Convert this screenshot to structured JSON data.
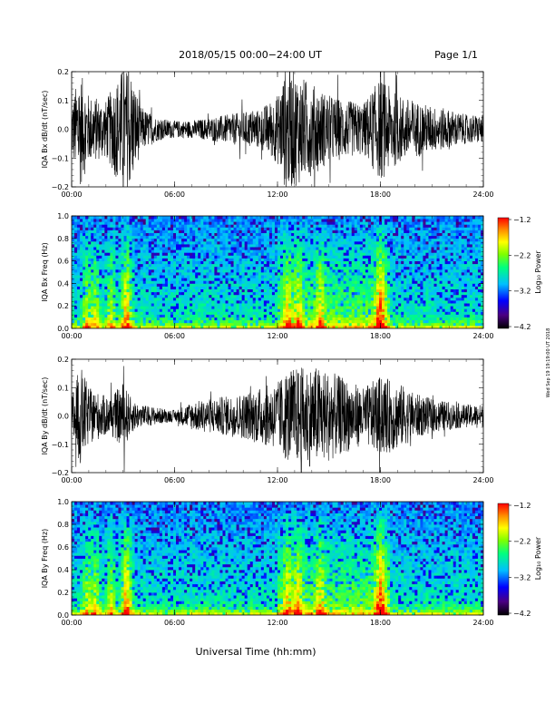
{
  "header": {
    "title": "2018/05/15  00:00−24:00 UT",
    "page": "Page 1/1"
  },
  "footer": {
    "xlabel": "Universal Time (hh:mm)",
    "stamp": "Wed Sep 19 19:19:00 UT 2018"
  },
  "colors": {
    "trace": "#000000",
    "colormap": [
      "#000000",
      "#4b0082",
      "#0000ff",
      "#00bfff",
      "#00ff7f",
      "#7fff00",
      "#ffff00",
      "#ff8c00",
      "#ff0000"
    ]
  },
  "chart_data": [
    {
      "type": "line",
      "name": "bx-waveform",
      "ylabel": "IQA Bx dB/dt (nT/sec)",
      "xlim": [
        0,
        24
      ],
      "ylim": [
        -0.2,
        0.2
      ],
      "xticks": [
        "00:00",
        "06:00",
        "12:00",
        "18:00",
        "24:00"
      ],
      "yticks": [
        "0.2",
        "0.1",
        "0.0",
        "−0.1",
        "−0.2"
      ],
      "amplitude_profile": {
        "x": [
          0,
          0.5,
          1,
          2,
          2.5,
          3,
          3.5,
          4,
          5,
          6,
          7,
          8,
          9,
          10,
          11,
          12,
          12.5,
          13,
          14,
          15,
          16,
          17,
          18,
          19,
          20,
          21,
          22,
          23,
          24
        ],
        "amp": [
          0.1,
          0.2,
          0.12,
          0.1,
          0.16,
          0.22,
          0.2,
          0.08,
          0.04,
          0.03,
          0.03,
          0.04,
          0.05,
          0.06,
          0.07,
          0.12,
          0.22,
          0.2,
          0.16,
          0.12,
          0.1,
          0.09,
          0.18,
          0.12,
          0.1,
          0.08,
          0.07,
          0.05,
          0.05
        ]
      }
    },
    {
      "type": "heatmap",
      "name": "bx-spectrogram",
      "ylabel": "IQA Bx Freq (Hz)",
      "xlim": [
        0,
        24
      ],
      "ylim": [
        0,
        1.0
      ],
      "xticks": [
        "00:00",
        "06:00",
        "12:00",
        "18:00",
        "24:00"
      ],
      "yticks": [
        "1.0",
        "0.8",
        "0.6",
        "0.4",
        "0.2",
        "0.0"
      ],
      "colorbar": {
        "label": "Log₁₀ Power",
        "ticks": [
          "−1.2",
          "−2.2",
          "−3.2",
          "−4.2"
        ],
        "range": [
          -4.2,
          -1.2
        ]
      }
    },
    {
      "type": "line",
      "name": "by-waveform",
      "ylabel": "IQA By dB/dt (nT/sec)",
      "xlim": [
        0,
        24
      ],
      "ylim": [
        -0.2,
        0.2
      ],
      "xticks": [
        "00:00",
        "06:00",
        "12:00",
        "18:00",
        "24:00"
      ],
      "yticks": [
        "0.2",
        "0.1",
        "0.0",
        "−0.1",
        "−0.2"
      ],
      "amplitude_profile": {
        "x": [
          0,
          0.5,
          1,
          2,
          2.5,
          3,
          3.5,
          4,
          5,
          6,
          7,
          8,
          9,
          10,
          11,
          12,
          12.5,
          13,
          14,
          15,
          16,
          17,
          18,
          19,
          20,
          21,
          22,
          23,
          24
        ],
        "amp": [
          0.08,
          0.18,
          0.1,
          0.07,
          0.08,
          0.12,
          0.06,
          0.04,
          0.03,
          0.02,
          0.05,
          0.06,
          0.07,
          0.08,
          0.1,
          0.12,
          0.16,
          0.17,
          0.18,
          0.16,
          0.13,
          0.1,
          0.14,
          0.12,
          0.08,
          0.06,
          0.05,
          0.04,
          0.04
        ]
      }
    },
    {
      "type": "heatmap",
      "name": "by-spectrogram",
      "ylabel": "IQA By Freq (Hz)",
      "xlim": [
        0,
        24
      ],
      "ylim": [
        0,
        1.0
      ],
      "xticks": [
        "00:00",
        "06:00",
        "12:00",
        "18:00",
        "24:00"
      ],
      "yticks": [
        "1.0",
        "0.8",
        "0.6",
        "0.4",
        "0.2",
        "0.0"
      ],
      "colorbar": {
        "label": "Log₁₀ Power",
        "ticks": [
          "−1.2",
          "−2.2",
          "−3.2",
          "−4.2"
        ],
        "range": [
          -4.2,
          -1.2
        ]
      }
    }
  ]
}
